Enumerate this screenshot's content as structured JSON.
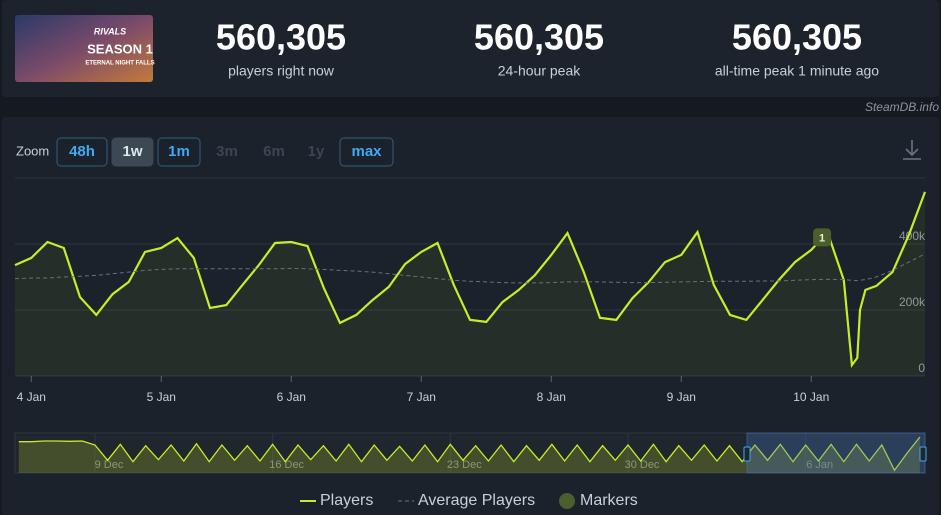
{
  "header": {
    "image_texts": [
      "RIVALS",
      "SEASON 1",
      "ETERNAL NIGHT FALLS"
    ],
    "stats": [
      {
        "value": "560,305",
        "label": "players right now"
      },
      {
        "value": "560,305",
        "label": "24-hour peak"
      },
      {
        "value": "560,305",
        "label": "all-time peak 1 minute ago"
      }
    ],
    "credit": "SteamDB.info"
  },
  "zoom": {
    "label": "Zoom",
    "buttons": [
      "48h",
      "1w",
      "1m",
      "3m",
      "6m",
      "1y",
      "max"
    ]
  },
  "chart_data": [
    {
      "type": "line",
      "x": [
        -3,
        0,
        3,
        6,
        9,
        12,
        15,
        18,
        21,
        24,
        27,
        30,
        33,
        36,
        39,
        42,
        45,
        48,
        51,
        54,
        57,
        60,
        63,
        66,
        69,
        72,
        75,
        78,
        81,
        84,
        87,
        90,
        93,
        96,
        99,
        102,
        105,
        108,
        111,
        114,
        117,
        120,
        123,
        126,
        129,
        132,
        135,
        138,
        141,
        144,
        147,
        150,
        151.5,
        152.5,
        153,
        154,
        156,
        159,
        162,
        165
      ],
      "xlim": [
        -3,
        165
      ],
      "xticks": [
        {
          "value": 0,
          "label": "4 Jan"
        },
        {
          "value": 24,
          "label": "5 Jan"
        },
        {
          "value": 48,
          "label": "6 Jan"
        },
        {
          "value": 72,
          "label": "7 Jan"
        },
        {
          "value": 96,
          "label": "8 Jan"
        },
        {
          "value": 120,
          "label": "9 Jan"
        },
        {
          "value": 144,
          "label": "10 Jan"
        }
      ],
      "ylim": [
        0,
        600000
      ],
      "yticks": [
        0,
        {
          "value": 200000,
          "label": "200k"
        },
        {
          "value": 400000,
          "label": "400k"
        }
      ],
      "grid": true,
      "series": [
        {
          "name": "Players",
          "color": "#c5ee26",
          "values": [
            336000,
            358000,
            406000,
            388000,
            239000,
            185000,
            248000,
            285000,
            376000,
            388000,
            418000,
            358000,
            206000,
            215000,
            276000,
            336000,
            403000,
            406000,
            394000,
            267000,
            161000,
            185000,
            230000,
            270000,
            339000,
            376000,
            403000,
            276000,
            170000,
            164000,
            224000,
            261000,
            306000,
            367000,
            433000,
            315000,
            176000,
            170000,
            236000,
            285000,
            345000,
            367000,
            436000,
            276000,
            185000,
            170000,
            230000,
            291000,
            345000,
            382000,
            436000,
            291000,
            33000,
            55000,
            200000,
            261000,
            273000,
            315000,
            427000,
            558000
          ]
        },
        {
          "name": "Average Players",
          "color": "#6b7079",
          "values": [
            295000,
            297000,
            297000,
            300000,
            302000,
            305000,
            310000,
            315000,
            320000,
            323000,
            325000,
            325000,
            325000,
            325000,
            325000,
            325000,
            325000,
            326000,
            325000,
            323000,
            320000,
            318000,
            315000,
            310000,
            305000,
            300000,
            295000,
            290000,
            287000,
            285000,
            283000,
            282000,
            282000,
            283000,
            285000,
            285000,
            285000,
            284000,
            283000,
            283000,
            284000,
            285000,
            286000,
            287000,
            287000,
            287000,
            288000,
            288000,
            290000,
            292000,
            293000,
            292000,
            290000,
            289000,
            290000,
            292000,
            300000,
            320000,
            345000,
            370000
          ]
        }
      ],
      "markers_name": "Markers",
      "marker_color": "#4b5e2d",
      "markers": [
        {
          "x": 146,
          "value": 420000,
          "label": "1"
        }
      ]
    },
    {
      "type": "line",
      "x": [
        -3,
        -2.5,
        -2,
        -1.5,
        -1,
        -0.5,
        0,
        0.5,
        1,
        1.5,
        2,
        2.5,
        3,
        3.5,
        4,
        4.5,
        5,
        5.5,
        6,
        6.5,
        7,
        7.5,
        8,
        8.5,
        9,
        9.5,
        10,
        10.5,
        11,
        11.5,
        12,
        12.5,
        13,
        13.5,
        14,
        14.5,
        15,
        15.5,
        16,
        16.5,
        17,
        17.5,
        18,
        18.5,
        19,
        19.5,
        20,
        20.5,
        21,
        21.5,
        22,
        22.5,
        23,
        23.5,
        24,
        24.5,
        25,
        25.5,
        26,
        26.5,
        27,
        27.5,
        28,
        28.5,
        29,
        29.5,
        30,
        30.5,
        31,
        31.5,
        32,
        32.5
      ],
      "xlim": [
        -3.15,
        32.7
      ],
      "xticks": [
        {
          "value": 0,
          "label": "9 Dec"
        },
        {
          "value": 7,
          "label": "16 Dec"
        },
        {
          "value": 14,
          "label": "23 Dec"
        },
        {
          "value": 21,
          "label": "30 Dec"
        },
        {
          "value": 28,
          "label": "6 Jan"
        }
      ],
      "ylim": [
        0,
        600000
      ],
      "color": "#c5ee26",
      "values": [
        470000,
        470000,
        480000,
        480000,
        475000,
        480000,
        420000,
        190000,
        430000,
        170000,
        410000,
        200000,
        420000,
        180000,
        440000,
        170000,
        420000,
        190000,
        410000,
        180000,
        430000,
        170000,
        420000,
        200000,
        410000,
        180000,
        430000,
        170000,
        420000,
        190000,
        400000,
        180000,
        420000,
        170000,
        430000,
        190000,
        410000,
        180000,
        420000,
        170000,
        410000,
        190000,
        430000,
        180000,
        420000,
        170000,
        410000,
        190000,
        420000,
        180000,
        430000,
        170000,
        410000,
        190000,
        420000,
        180000,
        410000,
        170000,
        420000,
        190000,
        430000,
        170000,
        420000,
        180000,
        430000,
        170000,
        430000,
        180000,
        420000,
        40000,
        300000,
        540000
      ]
    }
  ]
}
